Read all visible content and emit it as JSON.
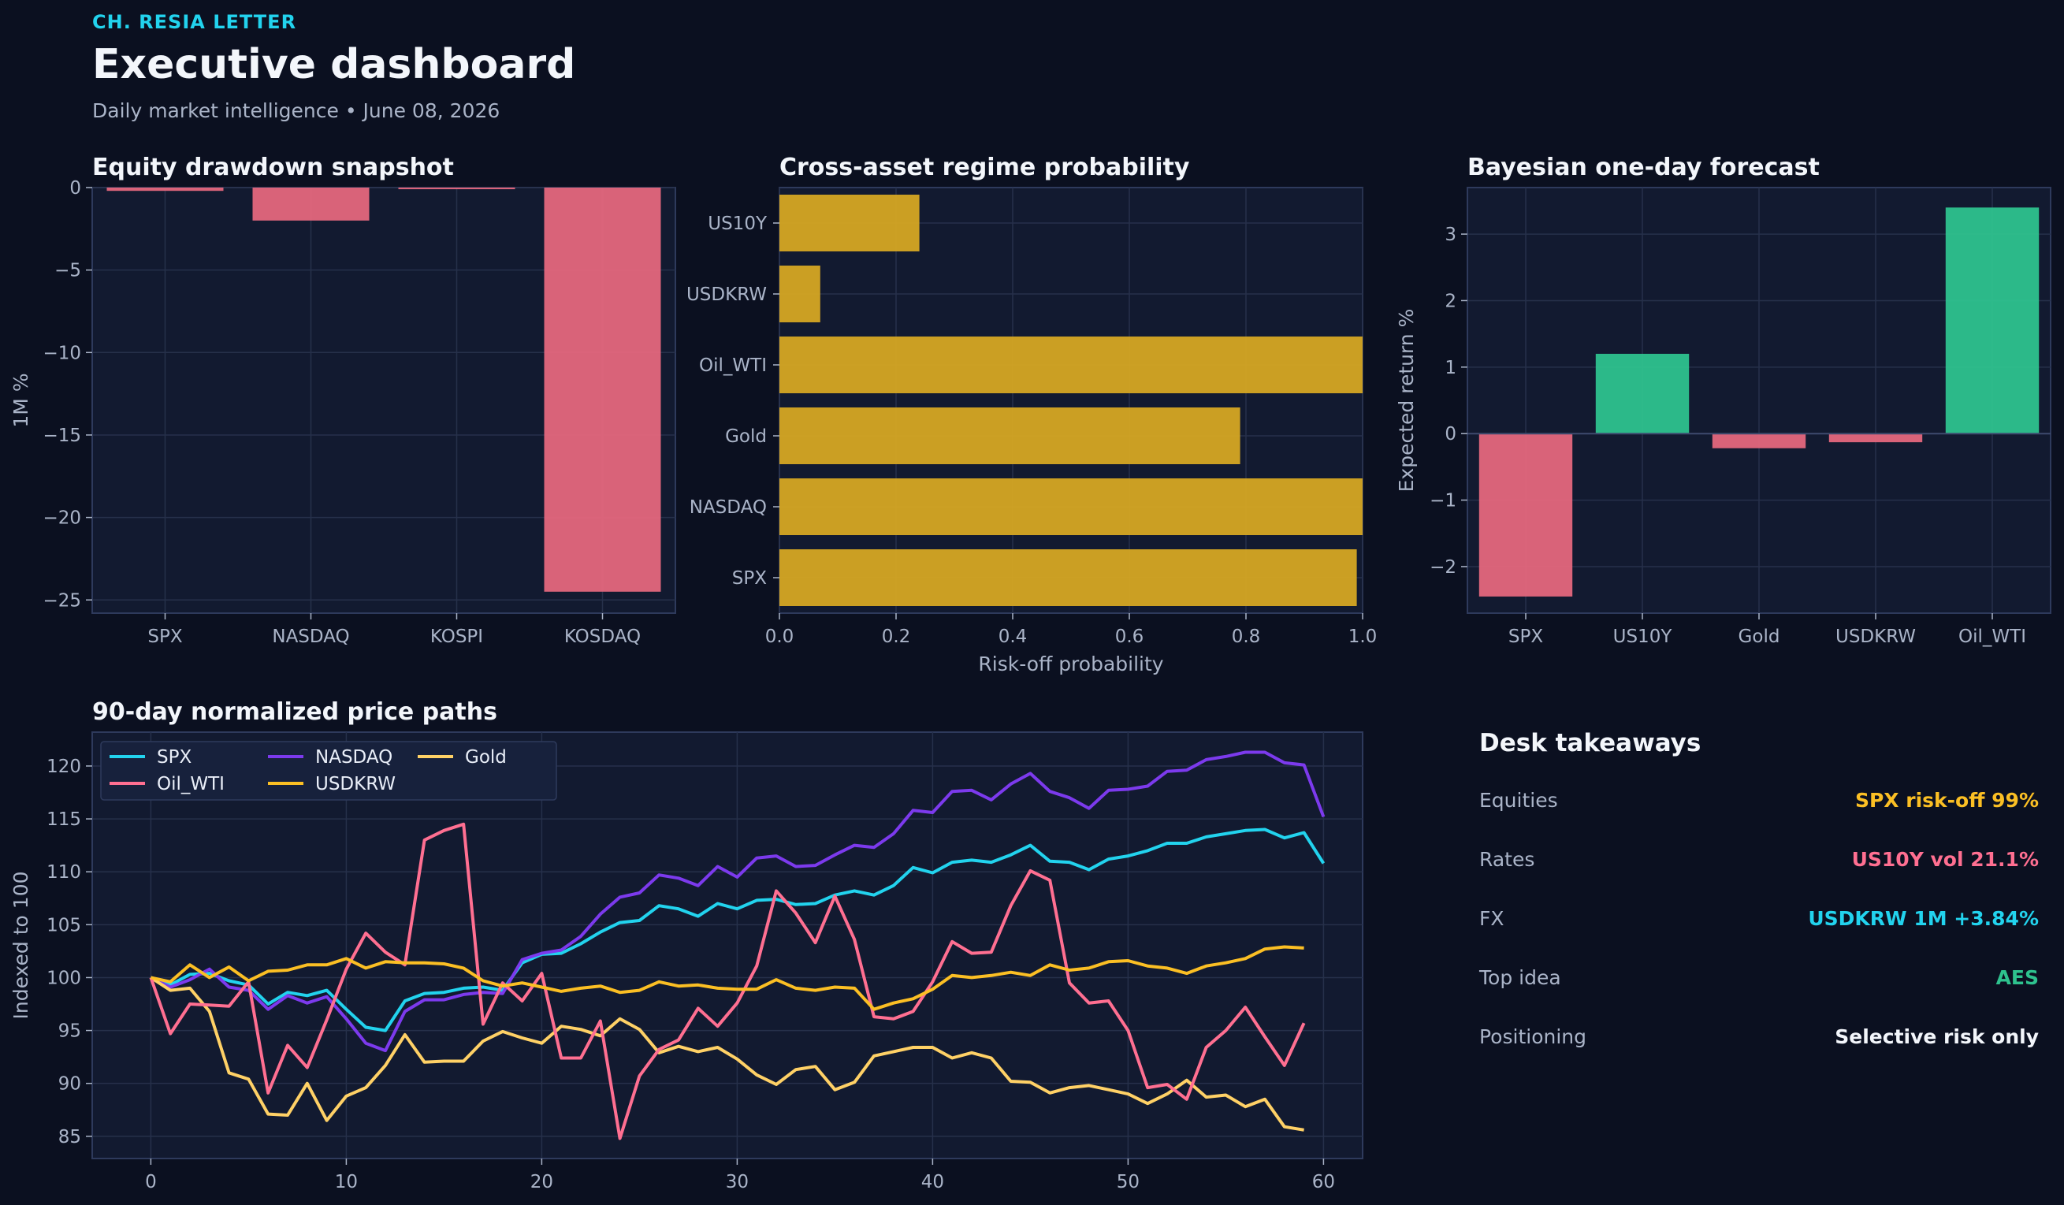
{
  "header": {
    "brand": "CH. RESIA LETTER",
    "title": "Executive dashboard",
    "subtitle": "Daily market intelligence • June 08, 2026"
  },
  "colors": {
    "negative": "#e5677d",
    "positive": "#2ec28e",
    "bar_gold": "#d6a623",
    "spx": "#22d3ee",
    "nasdaq": "#7c3aed",
    "gold": "#ffd166",
    "oil": "#ff6f91",
    "usdkrw": "#fbbf24"
  },
  "chart_data": [
    {
      "title": "Equity drawdown snapshot",
      "type": "bar",
      "categories": [
        "SPX",
        "NASDAQ",
        "KOSPI",
        "KOSDAQ"
      ],
      "values": [
        -0.2,
        -2.0,
        -0.1,
        -24.5
      ],
      "ylabel": "1M %",
      "xlabel": "",
      "ylim": [
        -25.8,
        0
      ],
      "yticks": [
        0,
        -5,
        -10,
        -15,
        -20,
        -25
      ],
      "ytick_labels": [
        "0",
        "−5",
        "−10",
        "−15",
        "−20",
        "−25"
      ],
      "grid": true
    },
    {
      "title": "Cross-asset regime probability",
      "type": "bar",
      "orientation": "horizontal",
      "categories": [
        "US10Y",
        "USDKRW",
        "Oil_WTI",
        "Gold",
        "NASDAQ",
        "SPX"
      ],
      "values": [
        0.24,
        0.07,
        1.0,
        0.79,
        1.0,
        0.99
      ],
      "xlabel": "Risk-off probability",
      "xlim": [
        0,
        1
      ],
      "xticks": [
        0,
        0.2,
        0.4,
        0.6,
        0.8,
        1.0
      ],
      "xtick_labels": [
        "0.0",
        "0.2",
        "0.4",
        "0.6",
        "0.8",
        "1.0"
      ],
      "grid": true
    },
    {
      "title": "Bayesian one-day forecast",
      "type": "bar",
      "categories": [
        "SPX",
        "US10Y",
        "Gold",
        "USDKRW",
        "Oil_WTI"
      ],
      "values": [
        -2.45,
        1.2,
        -0.22,
        -0.13,
        3.4
      ],
      "ylabel": "Expected return %",
      "xlabel": "",
      "ylim": [
        -2.7,
        3.7
      ],
      "yticks": [
        3,
        2,
        1,
        0,
        -1,
        -2
      ],
      "ytick_labels": [
        "3",
        "2",
        "1",
        "0",
        "−1",
        "−2"
      ],
      "grid": true
    },
    {
      "title": "90-day normalized price paths",
      "type": "line",
      "ylabel": "Indexed to 100",
      "xlabel": "",
      "xlim": [
        -3,
        62
      ],
      "ylim": [
        82.9,
        123.2
      ],
      "xticks": [
        0,
        10,
        20,
        30,
        40,
        50,
        60
      ],
      "yticks": [
        85,
        90,
        95,
        100,
        105,
        110,
        115,
        120
      ],
      "grid": true,
      "legend": "top-left",
      "series": [
        {
          "name": "SPX",
          "color_key": "spx",
          "values": [
            100,
            99.3,
            100.3,
            100.4,
            99.7,
            99.3,
            97.5,
            98.6,
            98.3,
            98.8,
            97.0,
            95.3,
            95.0,
            97.8,
            98.5,
            98.6,
            99.0,
            99.1,
            98.8,
            101.4,
            102.2,
            102.3,
            103.2,
            104.3,
            105.2,
            105.4,
            106.8,
            106.5,
            105.8,
            107.0,
            106.5,
            107.3,
            107.4,
            106.9,
            107.0,
            107.8,
            108.2,
            107.8,
            108.7,
            110.4,
            109.9,
            110.9,
            111.1,
            110.9,
            111.6,
            112.5,
            111.0,
            110.9,
            110.2,
            111.2,
            111.5,
            112.0,
            112.7,
            112.7,
            113.3,
            113.6,
            113.9,
            114.0,
            113.2,
            113.7,
            110.8
          ]
        },
        {
          "name": "NASDAQ",
          "color_key": "nasdaq",
          "values": [
            100,
            99.1,
            99.8,
            100.8,
            99.1,
            98.8,
            97.0,
            98.3,
            97.6,
            98.2,
            96.1,
            93.8,
            93.1,
            96.8,
            97.9,
            97.9,
            98.4,
            98.6,
            98.5,
            101.7,
            102.3,
            102.6,
            103.9,
            106.0,
            107.6,
            108.0,
            109.7,
            109.4,
            108.7,
            110.5,
            109.5,
            111.3,
            111.5,
            110.5,
            110.6,
            111.6,
            112.5,
            112.3,
            113.6,
            115.8,
            115.6,
            117.6,
            117.7,
            116.8,
            118.3,
            119.3,
            117.6,
            117.0,
            116.0,
            117.7,
            117.8,
            118.1,
            119.5,
            119.6,
            120.6,
            120.9,
            121.3,
            121.3,
            120.3,
            120.1,
            115.2
          ]
        },
        {
          "name": "Gold",
          "color_key": "gold",
          "values": [
            100,
            98.8,
            99.0,
            96.8,
            91.0,
            90.4,
            87.1,
            87.0,
            90.0,
            86.5,
            88.8,
            89.6,
            91.7,
            94.6,
            92.0,
            92.1,
            92.1,
            94.0,
            94.9,
            94.3,
            93.8,
            95.4,
            95.1,
            94.5,
            96.1,
            95.1,
            92.9,
            93.5,
            93.0,
            93.4,
            92.3,
            90.8,
            89.9,
            91.3,
            91.6,
            89.4,
            90.1,
            92.6,
            93.0,
            93.4,
            93.4,
            92.4,
            92.9,
            92.4,
            90.2,
            90.1,
            89.1,
            89.6,
            89.8,
            89.4,
            89.0,
            88.1,
            89.0,
            90.3,
            88.7,
            88.9,
            87.8,
            88.5,
            85.9,
            85.6
          ]
        },
        {
          "name": "Oil_WTI",
          "color_key": "oil",
          "values": [
            100,
            94.7,
            97.5,
            97.4,
            97.3,
            99.6,
            89.1,
            93.6,
            91.5,
            96.0,
            100.8,
            104.2,
            102.4,
            101.2,
            113.0,
            113.9,
            114.5,
            95.6,
            99.5,
            97.8,
            100.4,
            92.4,
            92.4,
            95.9,
            84.8,
            90.7,
            93.2,
            94.1,
            97.1,
            95.4,
            97.6,
            101.1,
            108.2,
            106.1,
            103.3,
            107.7,
            103.6,
            96.3,
            96.1,
            96.8,
            99.6,
            103.4,
            102.3,
            102.4,
            106.8,
            110.1,
            109.2,
            99.5,
            97.6,
            97.8,
            95.0,
            89.6,
            89.9,
            88.5,
            93.4,
            95.0,
            97.2,
            94.4,
            91.7,
            95.7
          ]
        },
        {
          "name": "USDKRW",
          "color_key": "usdkrw",
          "values": [
            100,
            99.6,
            101.2,
            100.0,
            101.0,
            99.7,
            100.6,
            100.7,
            101.2,
            101.2,
            101.8,
            100.9,
            101.5,
            101.4,
            101.4,
            101.3,
            100.9,
            99.7,
            99.2,
            99.5,
            99.1,
            98.7,
            99.0,
            99.2,
            98.6,
            98.8,
            99.6,
            99.2,
            99.3,
            99.0,
            98.9,
            98.9,
            99.8,
            99.0,
            98.8,
            99.1,
            99.0,
            97.0,
            97.6,
            98.0,
            98.9,
            100.2,
            100.0,
            100.2,
            100.5,
            100.2,
            101.2,
            100.7,
            100.9,
            101.5,
            101.6,
            101.1,
            100.9,
            100.4,
            101.1,
            101.4,
            101.8,
            102.7,
            102.9,
            102.8
          ]
        }
      ]
    }
  ],
  "takeaways": {
    "title": "Desk takeaways",
    "rows": [
      {
        "label": "Equities",
        "value": "SPX risk-off 99%",
        "color": "#fbbf24"
      },
      {
        "label": "Rates",
        "value": "US10Y vol 21.1%",
        "color": "#ff6f91"
      },
      {
        "label": "FX",
        "value": "USDKRW 1M +3.84%",
        "color": "#22d3ee"
      },
      {
        "label": "Top idea",
        "value": "AES",
        "color": "#2ec28e"
      },
      {
        "label": "Positioning",
        "value": "Selective risk only",
        "color": "#f3f6fb"
      }
    ]
  }
}
